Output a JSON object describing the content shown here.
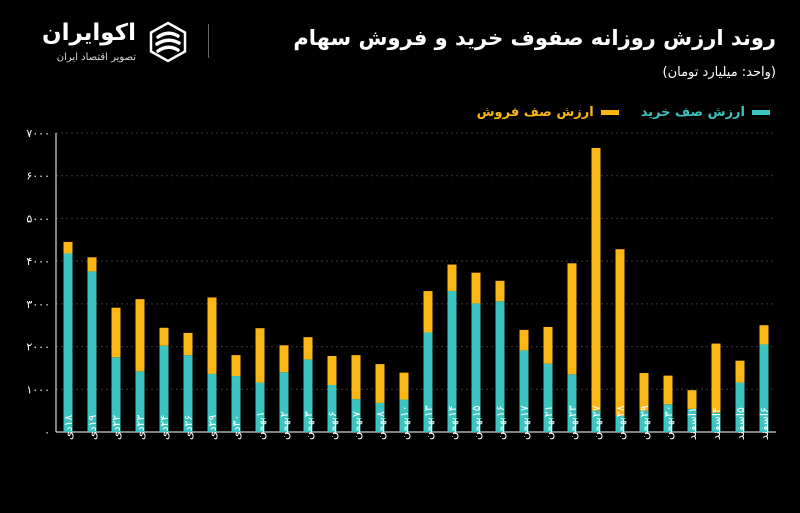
{
  "brand": {
    "name": "اکوایران",
    "tagline": "تصویر اقتصاد ایران"
  },
  "colors": {
    "buy": "#3cc5c0",
    "sell": "#fcb714",
    "grid": "#3a3a3a",
    "axis": "#ffffff"
  },
  "chart_data": {
    "type": "bar",
    "stacked": true,
    "title": "روند ارزش روزانه صفوف خرید و فروش سهام",
    "subtitle": "(واحد: میلیارد تومان)",
    "legend_position": "top-right",
    "grid": true,
    "ylim": [
      0,
      7000
    ],
    "yticks": [
      "۰",
      "۱۰۰۰",
      "۲۰۰۰",
      "۳۰۰۰",
      "۴۰۰۰",
      "۵۰۰۰",
      "۶۰۰۰",
      "۷۰۰۰"
    ],
    "categories": [
      "۱۸دی",
      "۱۹دی",
      "۲۲دی",
      "۲۳دی",
      "۲۴دی",
      "۲۶دی",
      "۲۹دی",
      "۳۰دی",
      "۱بهمن",
      "۲بهمن",
      "۳بهمن",
      "۶بهمن",
      "۷بهمن",
      "۸بهمن",
      "۱۰بهمن",
      "۱۳بهمن",
      "۱۴بهمن",
      "۱۵بهمن",
      "۱۶بهمن",
      "۱۷بهمن",
      "۲۱بهمن",
      "۲۳بهمن",
      "۲۷بهمن",
      "۲۸بهمن",
      "۲۹بهمن",
      "۳۰بهمن",
      "۱اسفند",
      "۴اسفند",
      "۵اسفند",
      "۶اسفند"
    ],
    "series": [
      {
        "name": "ارزش صف خرید",
        "values": [
          4180,
          3760,
          1750,
          1420,
          2020,
          1800,
          1360,
          1310,
          1160,
          1400,
          1700,
          1100,
          770,
          680,
          760,
          2330,
          3300,
          3010,
          3060,
          1910,
          1600,
          1350,
          500,
          380,
          500,
          650,
          540,
          450,
          1160,
          2050
        ]
      },
      {
        "name": "ارزش صف فروش",
        "values": [
          270,
          330,
          1160,
          1690,
          420,
          520,
          1790,
          490,
          1270,
          630,
          520,
          680,
          1030,
          910,
          630,
          970,
          620,
          720,
          480,
          480,
          860,
          2600,
          6150,
          3900,
          880,
          670,
          440,
          1620,
          510,
          450
        ]
      }
    ]
  }
}
